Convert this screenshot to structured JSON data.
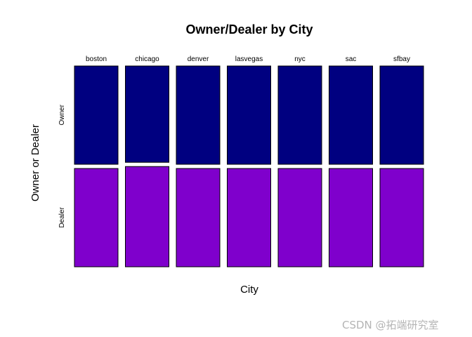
{
  "chart_data": {
    "type": "bar",
    "variant": "mosaic",
    "title": "Owner/Dealer by City",
    "xlabel": "City",
    "ylabel": "Owner or Dealer",
    "categories": [
      "boston",
      "chicago",
      "denver",
      "lasvegas",
      "nyc",
      "sac",
      "sfbay"
    ],
    "category_weights": [
      1,
      1,
      1,
      1,
      1,
      1,
      1
    ],
    "series": [
      {
        "name": "Owner",
        "values": [
          0.5,
          0.49,
          0.5,
          0.5,
          0.5,
          0.5,
          0.5
        ],
        "color": "#000080"
      },
      {
        "name": "Dealer",
        "values": [
          0.5,
          0.51,
          0.5,
          0.5,
          0.5,
          0.5,
          0.5
        ],
        "color": "#7F00CC"
      }
    ],
    "ylim": [
      0,
      1
    ],
    "grid": false,
    "legend": "none"
  },
  "watermark": "CSDN @拓端研究室"
}
